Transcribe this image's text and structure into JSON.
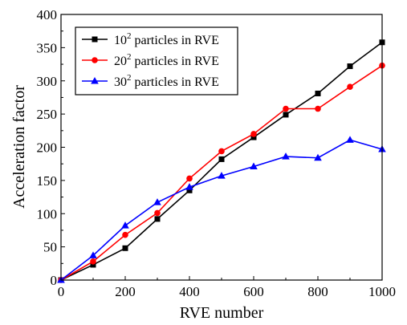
{
  "chart_data": {
    "type": "line",
    "xlabel": "RVE number",
    "ylabel": "Acceleration factor",
    "xlim": [
      0,
      1000
    ],
    "ylim": [
      0,
      400
    ],
    "xticks": [
      "0",
      "200",
      "400",
      "600",
      "800",
      "1000"
    ],
    "yticks": [
      "0",
      "50",
      "100",
      "150",
      "200",
      "250",
      "300",
      "350",
      "400"
    ],
    "grid": false,
    "legend_position": "top-left",
    "x": [
      0,
      100,
      200,
      300,
      400,
      500,
      600,
      700,
      800,
      900,
      1000
    ],
    "series": [
      {
        "name_prefix": "10",
        "name_exp": "2",
        "name_suffix": " particles in RVE",
        "color": "#000000",
        "marker": "square",
        "values": [
          0,
          23,
          48,
          92,
          135,
          182,
          215,
          249,
          281,
          322,
          358
        ]
      },
      {
        "name_prefix": "20",
        "name_exp": "2",
        "name_suffix": " particles in RVE",
        "color": "#ff0000",
        "marker": "circle",
        "values": [
          0,
          28,
          68,
          101,
          153,
          194,
          220,
          258,
          258,
          291,
          323
        ]
      },
      {
        "name_prefix": "30",
        "name_exp": "2",
        "name_suffix": " particles in RVE",
        "color": "#0000ff",
        "marker": "triangle",
        "values": [
          0,
          37,
          82,
          117,
          140,
          157,
          171,
          186,
          184,
          211,
          197
        ]
      }
    ]
  }
}
